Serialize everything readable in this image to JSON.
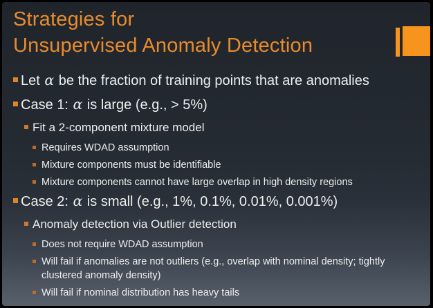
{
  "slide": {
    "title": {
      "line1": "Strategies for",
      "line2": "Unsupervised Anomaly Detection"
    },
    "colors": {
      "title_orange": "#e88b2d",
      "accent_orange": "#f7941e",
      "bullet_level1": "#e0832a",
      "bullet_level2": "#d0782c",
      "bullet_level3": "#bd6c2a",
      "body_text": "#eeeeee",
      "background_top": "#20252c",
      "background_bottom": "#58606c"
    },
    "bullets": [
      {
        "level": 1,
        "text": "Let α be the fraction of training points that are anomalies"
      },
      {
        "level": 1,
        "text": "Case 1: α is large (e.g., > 5%)"
      },
      {
        "level": 2,
        "text": "Fit a 2-component mixture model"
      },
      {
        "level": 3,
        "text": "Requires WDAD assumption"
      },
      {
        "level": 3,
        "text": "Mixture components must be identifiable"
      },
      {
        "level": 3,
        "text": "Mixture components cannot have large overlap in high density regions"
      },
      {
        "level": 1,
        "text": "Case 2: α is small (e.g., 1%, 0.1%, 0.01%, 0.001%)"
      },
      {
        "level": 2,
        "text": "Anomaly detection via Outlier detection"
      },
      {
        "level": 3,
        "text": "Does not require WDAD assumption"
      },
      {
        "level": 3,
        "text": "Will fail if anomalies are not outliers (e.g., overlap with nominal density; tightly clustered anomaly density)"
      },
      {
        "level": 3,
        "text": "Will fail if nominal distribution has heavy tails"
      }
    ]
  }
}
